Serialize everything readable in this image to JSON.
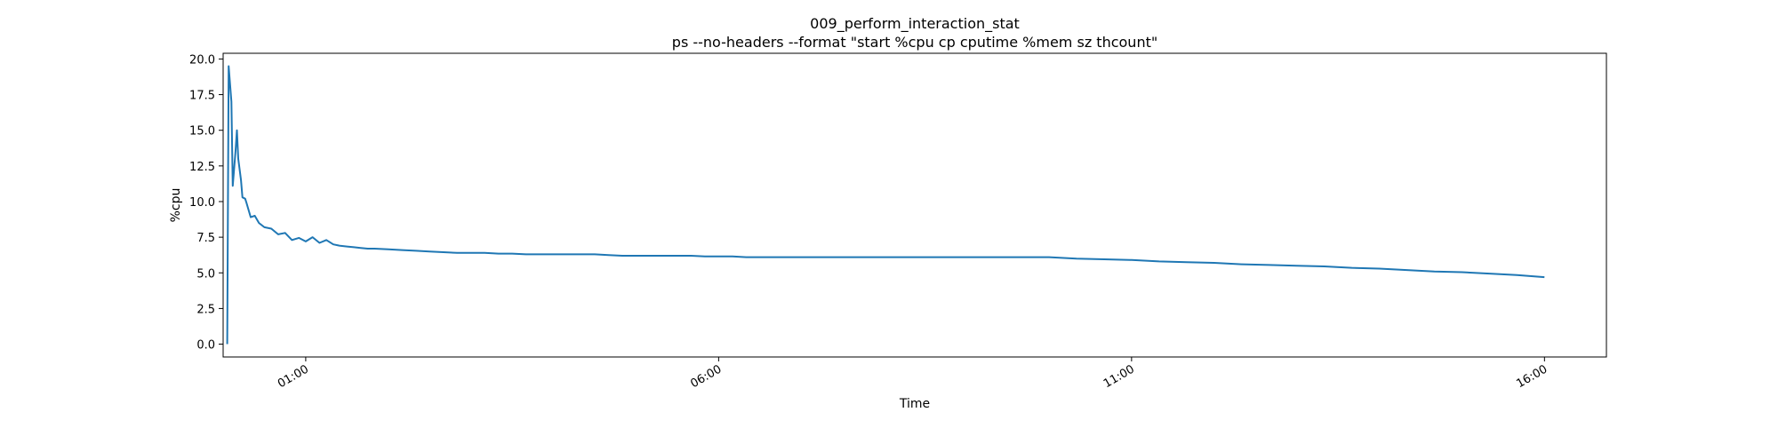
{
  "chart_data": {
    "type": "line",
    "title": "009_perform_interaction_stat",
    "subtitle": "ps --no-headers --format \"start %cpu cp cputime %mem sz thcount\"",
    "xlabel": "Time",
    "ylabel": "%cpu",
    "xlim": [
      "00:00",
      "16:45"
    ],
    "ylim": [
      -0.9,
      20.4
    ],
    "x_ticks": [
      "01:00",
      "06:00",
      "11:00",
      "16:00"
    ],
    "y_ticks": [
      0.0,
      2.5,
      5.0,
      7.5,
      10.0,
      12.5,
      15.0,
      17.5,
      20.0
    ],
    "y_tick_labels": [
      "0.0",
      "2.5",
      "5.0",
      "7.5",
      "10.0",
      "12.5",
      "15.0",
      "17.5",
      "20.0"
    ],
    "grid": false,
    "color": "#1f77b4",
    "series": [
      {
        "x": [
          "00:03",
          "00:04",
          "00:06",
          "00:07",
          "00:09",
          "00:10",
          "00:11",
          "00:13",
          "00:14",
          "00:16",
          "00:17",
          "00:20",
          "00:23",
          "00:26",
          "00:30",
          "00:35",
          "00:40",
          "00:45",
          "00:50",
          "00:55",
          "01:00",
          "01:05",
          "01:10",
          "01:15",
          "01:20",
          "01:25",
          "01:30",
          "01:35",
          "01:40",
          "01:45",
          "01:50",
          "02:00",
          "02:10",
          "02:20",
          "02:30",
          "02:40",
          "02:50",
          "03:00",
          "03:10",
          "03:20",
          "03:30",
          "03:40",
          "03:50",
          "04:00",
          "04:10",
          "04:20",
          "04:30",
          "04:40",
          "04:50",
          "05:00",
          "05:10",
          "05:20",
          "05:30",
          "05:40",
          "05:50",
          "06:00",
          "06:10",
          "06:20",
          "06:30",
          "06:40",
          "06:50",
          "07:00",
          "07:30",
          "08:00",
          "08:30",
          "09:00",
          "09:30",
          "10:00",
          "10:20",
          "10:40",
          "11:00",
          "11:20",
          "11:40",
          "12:00",
          "12:20",
          "12:40",
          "13:00",
          "13:20",
          "13:40",
          "14:00",
          "14:20",
          "14:40",
          "15:00",
          "15:20",
          "15:40",
          "16:00"
        ],
        "y": [
          0.0,
          19.5,
          17.0,
          11.1,
          13.5,
          15.0,
          13.0,
          11.5,
          10.3,
          10.2,
          9.9,
          8.9,
          9.0,
          8.5,
          8.2,
          8.1,
          7.7,
          7.8,
          7.3,
          7.45,
          7.2,
          7.5,
          7.1,
          7.3,
          7.0,
          6.9,
          6.85,
          6.8,
          6.75,
          6.7,
          6.7,
          6.65,
          6.6,
          6.55,
          6.5,
          6.45,
          6.4,
          6.4,
          6.4,
          6.35,
          6.35,
          6.3,
          6.3,
          6.3,
          6.3,
          6.3,
          6.3,
          6.25,
          6.2,
          6.2,
          6.2,
          6.2,
          6.2,
          6.2,
          6.15,
          6.15,
          6.15,
          6.1,
          6.1,
          6.1,
          6.1,
          6.1,
          6.1,
          6.1,
          6.1,
          6.1,
          6.1,
          6.1,
          6.0,
          5.95,
          5.9,
          5.8,
          5.75,
          5.7,
          5.6,
          5.55,
          5.5,
          5.45,
          5.35,
          5.3,
          5.2,
          5.1,
          5.05,
          4.95,
          4.85,
          4.7
        ]
      }
    ]
  }
}
